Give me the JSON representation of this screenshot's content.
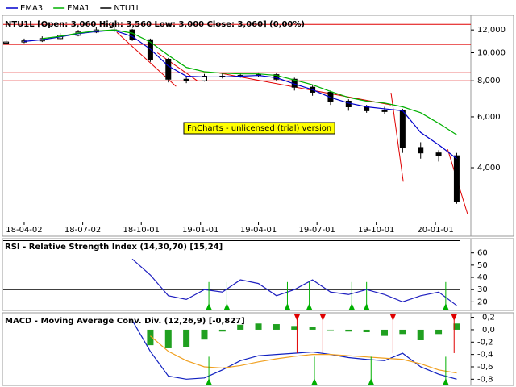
{
  "chart_data": [
    {
      "type": "candlestick",
      "name": "NTU1L",
      "color": "#000000",
      "title": "NTU1L [Open: 3,060 High: 3,560 Low: 3,000 Close: 3,060] (0,00%)",
      "watermark": "FnCharts - unlicensed (trial) version",
      "x": [
        "18-03-05",
        "18-04-02",
        "18-04-30",
        "18-05-28",
        "18-06-25",
        "18-07-23",
        "18-08-20",
        "18-09-17",
        "18-10-15",
        "18-11-12",
        "18-12-10",
        "19-01-07",
        "19-02-04",
        "19-03-04",
        "19-04-01",
        "19-04-29",
        "19-05-27",
        "19-06-24",
        "19-07-22",
        "19-08-19",
        "19-09-16",
        "19-10-14",
        "19-11-11",
        "19-12-09",
        "20-01-06",
        "20-02-03"
      ],
      "open": [
        10800,
        10900,
        11000,
        11200,
        11500,
        11800,
        12000,
        12000,
        11100,
        9500,
        8100,
        8000,
        8300,
        8300,
        8350,
        8400,
        8100,
        7600,
        7300,
        6800,
        6500,
        6300,
        6300,
        4700,
        4500,
        4400
      ],
      "high": [
        11100,
        11200,
        11400,
        11700,
        12000,
        12300,
        12300,
        12100,
        11200,
        9600,
        8300,
        8450,
        8500,
        8500,
        8550,
        8500,
        8200,
        7700,
        7400,
        6900,
        6600,
        6500,
        6400,
        4900,
        4600,
        4500
      ],
      "low": [
        10700,
        10800,
        10900,
        11100,
        11400,
        11700,
        11800,
        11000,
        9300,
        7900,
        7850,
        7950,
        8150,
        8200,
        8250,
        8000,
        7400,
        7100,
        6600,
        6300,
        6200,
        6150,
        4500,
        4300,
        4200,
        3000
      ],
      "close": [
        10900,
        11000,
        11200,
        11500,
        11800,
        12000,
        12000,
        11100,
        9500,
        8100,
        8000,
        8300,
        8300,
        8350,
        8400,
        8100,
        7600,
        7300,
        6800,
        6500,
        6300,
        6300,
        4700,
        4500,
        4400,
        3060
      ],
      "series": [
        {
          "name": "EMA3",
          "color": "#0000cc",
          "values": [
            null,
            10950,
            11100,
            11350,
            11650,
            11850,
            11950,
            11400,
            10300,
            9000,
            8300,
            8250,
            8250,
            8300,
            8350,
            8200,
            7800,
            7450,
            7000,
            6700,
            6500,
            6400,
            6300,
            5300,
            4800,
            4300
          ]
        },
        {
          "name": "EMA1",
          "color": "#00b000",
          "values": [
            null,
            null,
            11200,
            11400,
            11700,
            11900,
            12000,
            11700,
            10900,
            9800,
            8900,
            8600,
            8500,
            8450,
            8450,
            8350,
            8050,
            7750,
            7350,
            7000,
            6800,
            6700,
            6500,
            6200,
            5700,
            5200
          ]
        }
      ],
      "hlines": [
        12550,
        10690,
        8530,
        8000
      ],
      "trendlines": [
        {
          "x": [
            "18-08-24",
            "18-11-24"
          ],
          "y": [
            11770,
            7650
          ]
        },
        {
          "x": [
            "18-10-26",
            "18-12-27"
          ],
          "y": [
            10000,
            8000
          ]
        },
        {
          "x": [
            "19-01-28",
            "19-10-24"
          ],
          "y": [
            8530,
            6600
          ]
        },
        {
          "x": [
            "19-10-24",
            "19-11-12"
          ],
          "y": [
            7270,
            3580
          ]
        },
        {
          "x": [
            "20-01-20",
            "20-02-20"
          ],
          "y": [
            4630,
            2760
          ]
        }
      ],
      "yscale": "log",
      "ylim": [
        2600,
        13400
      ],
      "yticks": [
        {
          "value": 12000,
          "label": "12,000"
        },
        {
          "value": 10000,
          "label": "10,000"
        },
        {
          "value": 8000,
          "label": "8,000"
        },
        {
          "value": 6000,
          "label": "6,000"
        },
        {
          "value": 4000,
          "label": "4,000"
        }
      ],
      "xlim": [
        "18-03-03",
        "20-02-20"
      ],
      "xticks": [
        "18-04-02",
        "18-07-02",
        "18-10-01",
        "19-01-01",
        "19-04-01",
        "19-07-01",
        "19-10-01",
        "20-01-01"
      ]
    },
    {
      "type": "line",
      "title": "RSI - Relative Strength Index (14,30,70) [15,24]",
      "series": [
        {
          "color": "#2020c0",
          "values": [
            null,
            null,
            null,
            null,
            null,
            null,
            null,
            55,
            42,
            25,
            22,
            30,
            28,
            38,
            35,
            25,
            30,
            38,
            28,
            26,
            30,
            26,
            20,
            25,
            28,
            17
          ]
        }
      ],
      "levels": [
        30,
        70
      ],
      "buy_signals": [
        "19-01-14",
        "19-02-11",
        "19-05-16",
        "19-06-19",
        "19-08-24",
        "19-09-16",
        "20-01-17"
      ],
      "ylim": [
        13,
        71
      ],
      "yticks": [
        60,
        50,
        40,
        30,
        20
      ]
    },
    {
      "type": "line",
      "title": "MACD - Moving Average Conv. Div. (12,26,9) [-0,827]",
      "series": [
        {
          "style": "bar",
          "color": "#20a020",
          "values": [
            null,
            null,
            null,
            null,
            null,
            null,
            null,
            null,
            -0.25,
            -0.3,
            -0.28,
            -0.16,
            -0.03,
            0.08,
            0.1,
            0.09,
            0.06,
            0.04,
            0.0,
            -0.03,
            -0.04,
            -0.1,
            -0.07,
            -0.17,
            -0.07,
            0.1
          ]
        },
        {
          "color": "#1020c0",
          "values": [
            null,
            null,
            null,
            null,
            null,
            null,
            null,
            0.15,
            -0.35,
            -0.75,
            -0.8,
            -0.78,
            -0.65,
            -0.5,
            -0.42,
            -0.4,
            -0.38,
            -0.36,
            -0.4,
            -0.45,
            -0.48,
            -0.5,
            -0.38,
            -0.6,
            -0.72,
            -0.8
          ]
        },
        {
          "color": "#f0a020",
          "values": [
            null,
            null,
            null,
            null,
            null,
            null,
            null,
            null,
            -0.1,
            -0.35,
            -0.5,
            -0.6,
            -0.62,
            -0.58,
            -0.52,
            -0.47,
            -0.43,
            -0.4,
            -0.4,
            -0.42,
            -0.44,
            -0.46,
            -0.48,
            -0.55,
            -0.65,
            -0.7
          ]
        }
      ],
      "buy_signals": [
        "19-01-14",
        "19-06-27",
        "19-09-23",
        "20-01-17"
      ],
      "sell_signals": [
        "19-05-31",
        "19-07-10",
        "19-10-27",
        "20-01-30"
      ],
      "ylim": [
        -0.9,
        0.26
      ],
      "yticks": [
        {
          "value": 0.2,
          "label": "0,2"
        },
        {
          "value": 0,
          "label": "0,0"
        },
        {
          "value": -0.2,
          "label": "-0,2"
        },
        {
          "value": -0.4,
          "label": "-0,4"
        },
        {
          "value": -0.6,
          "label": "-0,6"
        },
        {
          "value": -0.8,
          "label": "-0,8"
        }
      ]
    }
  ]
}
